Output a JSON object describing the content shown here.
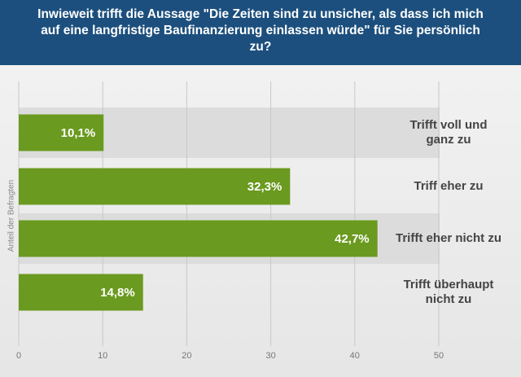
{
  "chart_data": {
    "type": "bar",
    "orientation": "horizontal",
    "title": "Inwieweit trifft die Aussage \"Die Zeiten sind zu unsicher, als dass ich mich auf eine langfristige Baufinanzierung einlassen würde\" für Sie persönlich zu?",
    "y_axis_label": "Anteil der Befragten",
    "categories": [
      "Trifft voll und ganz zu",
      "Triff eher zu",
      "Trifft eher nicht zu",
      "Trifft überhaupt nicht zu"
    ],
    "values": [
      10.1,
      32.3,
      42.7,
      14.8
    ],
    "value_labels": [
      "10,1%",
      "32,3%",
      "42,7%",
      "14,8%"
    ],
    "color": "#6a9a1f",
    "xlim": [
      0,
      50
    ],
    "xticks": [
      0,
      10,
      20,
      30,
      40,
      50
    ],
    "grid": true
  }
}
